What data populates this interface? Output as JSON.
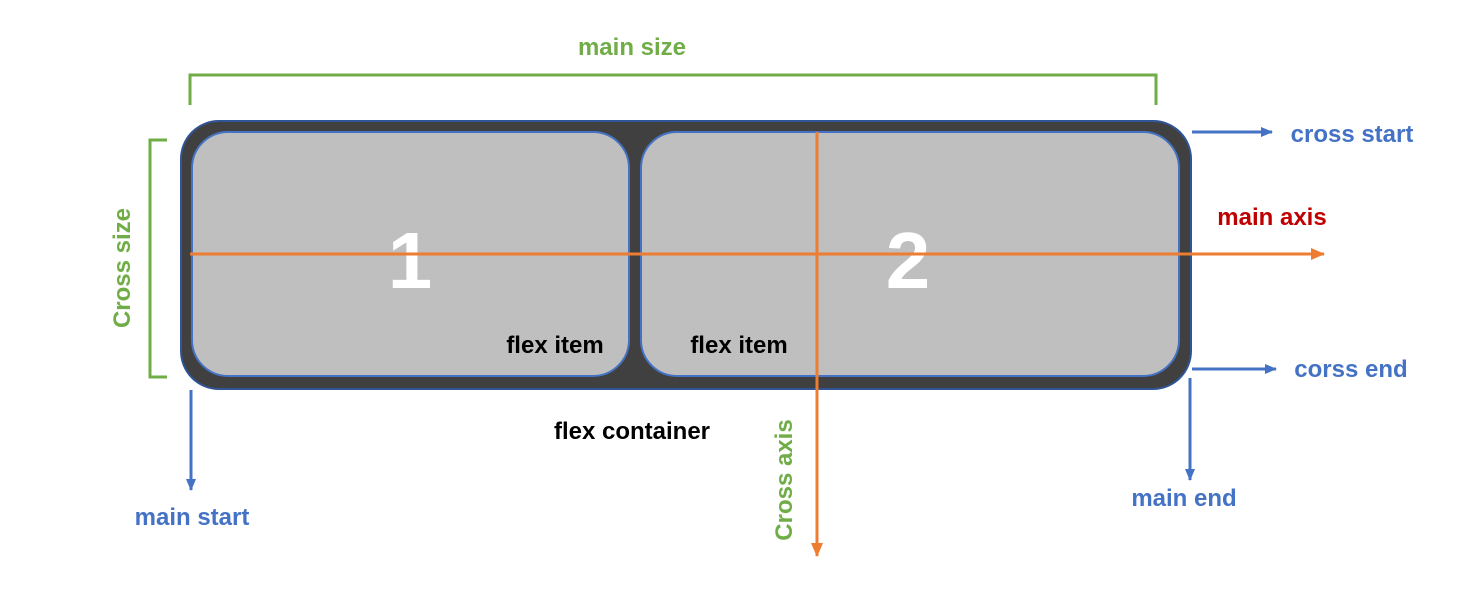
{
  "colors": {
    "green": "#70AD47",
    "blue": "#4472C4",
    "orange": "#ED7D31",
    "red": "#C00000",
    "container_fill": "#404040",
    "item_fill": "#BFBFBF",
    "item_number": "#FFFFFF",
    "text_dark": "#000000"
  },
  "labels": {
    "main_size": "main size",
    "cross_size": "Cross size",
    "cross_start": "cross start",
    "main_axis": "main axis",
    "cross_end": "corss end",
    "main_end": "main end",
    "main_start": "main start",
    "cross_axis": "Cross axis",
    "flex_container": "flex container"
  },
  "items": [
    {
      "number": "1",
      "label": "flex item"
    },
    {
      "number": "2",
      "label": "flex item"
    }
  ]
}
